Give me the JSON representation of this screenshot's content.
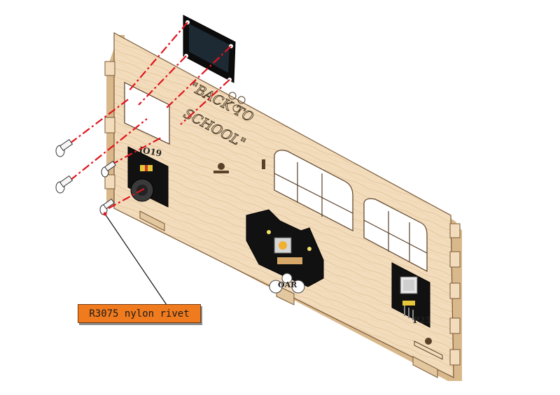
{
  "callout": {
    "label": "R3075 nylon rivet"
  },
  "engraving": {
    "line1": "\"BACK TO",
    "line2": "SCHOOL\""
  },
  "pin_labels": {
    "left_module": "IO19",
    "center_module": "OAR",
    "right_module": "P25"
  },
  "colors": {
    "wood": "#f2dcbc",
    "wood_edge": "#d9b88c",
    "module": "#111111",
    "guide_line": "#e0141e",
    "callout_fill": "#f07a1e"
  }
}
